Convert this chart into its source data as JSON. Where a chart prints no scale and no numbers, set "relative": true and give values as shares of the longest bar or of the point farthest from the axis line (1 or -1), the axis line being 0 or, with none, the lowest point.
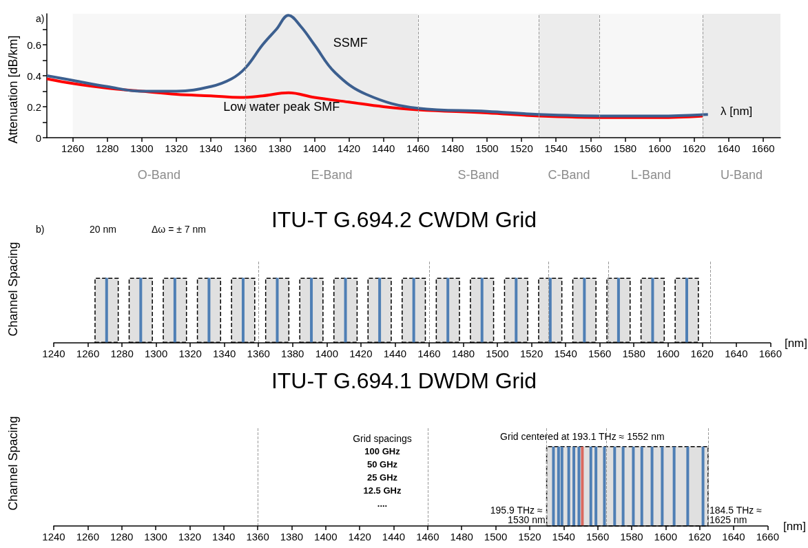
{
  "chart_data": [
    {
      "type": "line",
      "ylabel": "Attenuation [dB/km]",
      "xlabel": "λ [nm]",
      "annotations": [
        "a)"
      ],
      "marker": "none",
      "xlim": [
        1245,
        1670
      ],
      "xticks": [
        1260,
        1280,
        1300,
        1320,
        1340,
        1360,
        1380,
        1400,
        1420,
        1440,
        1460,
        1480,
        1500,
        1520,
        1540,
        1560,
        1580,
        1600,
        1620,
        1640,
        1660
      ],
      "ylim": [
        0,
        0.8
      ],
      "yticks": [
        0,
        {
          "value": 0.1,
          "label": null
        },
        0.2,
        {
          "value": 0.3,
          "label": null
        },
        0.4,
        {
          "value": 0.5,
          "label": null
        },
        0.6,
        {
          "value": 0.7,
          "label": null
        }
      ],
      "series": [
        {
          "name": "Low water peak SMF",
          "color": "#ff0000",
          "x": [
            1245,
            1260,
            1280,
            1300,
            1320,
            1340,
            1357,
            1370,
            1385,
            1400,
            1420,
            1440,
            1460,
            1500,
            1530,
            1570,
            1600,
            1625
          ],
          "values": [
            0.38,
            0.35,
            0.32,
            0.3,
            0.28,
            0.27,
            0.26,
            0.27,
            0.29,
            0.26,
            0.23,
            0.2,
            0.18,
            0.16,
            0.14,
            0.13,
            0.13,
            0.14
          ]
        },
        {
          "name": "SSMF",
          "color": "#3c5f8f",
          "x": [
            1245,
            1260,
            1280,
            1300,
            1320,
            1340,
            1352,
            1360,
            1370,
            1378,
            1385,
            1392,
            1400,
            1412,
            1430,
            1460,
            1500,
            1530,
            1570,
            1600,
            1628
          ],
          "values": [
            0.4,
            0.37,
            0.33,
            0.3,
            0.3,
            0.33,
            0.38,
            0.45,
            0.6,
            0.7,
            0.79,
            0.72,
            0.6,
            0.42,
            0.28,
            0.19,
            0.17,
            0.15,
            0.14,
            0.14,
            0.15
          ]
        }
      ],
      "ref_lines": [
        {
          "axis": "x",
          "value": 1360,
          "color": "#999999",
          "line_style": "dashed"
        },
        {
          "axis": "x",
          "value": 1460,
          "color": "#999999",
          "line_style": "dashed"
        },
        {
          "axis": "x",
          "value": 1530,
          "color": "#999999",
          "line_style": "dashed"
        },
        {
          "axis": "x",
          "value": 1565,
          "color": "#999999",
          "line_style": "dashed"
        },
        {
          "axis": "x",
          "value": 1625,
          "color": "#999999",
          "line_style": "dashed"
        }
      ],
      "bands": [
        {
          "axis": "x",
          "from": 1260,
          "to": 1360,
          "label": "O-Band",
          "color": "#f7f7f7"
        },
        {
          "axis": "x",
          "from": 1360,
          "to": 1460,
          "label": "E-Band",
          "color": "#ececec"
        },
        {
          "axis": "x",
          "from": 1460,
          "to": 1530,
          "label": "S-Band",
          "color": "#f7f7f7"
        },
        {
          "axis": "x",
          "from": 1530,
          "to": 1565,
          "label": "C-Band",
          "color": "#ececec"
        },
        {
          "axis": "x",
          "from": 1565,
          "to": 1625,
          "label": "L-Band",
          "color": "#f7f7f7"
        },
        {
          "axis": "x",
          "from": 1625,
          "to": 1670,
          "label": "U-Band",
          "color": "#ececec"
        }
      ]
    },
    {
      "type": "bar",
      "relative": true,
      "title": "ITU-T G.694.2 CWDM Grid",
      "ylabel": "Channel Spacing",
      "xlabel": "[nm]",
      "annotations": [
        "b)",
        "20 nm",
        "Δω = ± 7 nm"
      ],
      "xlim": [
        1240,
        1660
      ],
      "xticks": [
        1240,
        1260,
        1280,
        1300,
        1320,
        1340,
        1360,
        1380,
        1400,
        1420,
        1440,
        1460,
        1480,
        1500,
        1520,
        1540,
        1560,
        1580,
        1600,
        1620,
        1640,
        1660
      ],
      "x": [
        1271,
        1291,
        1311,
        1331,
        1351,
        1371,
        1391,
        1411,
        1431,
        1451,
        1471,
        1491,
        1511,
        1531,
        1551,
        1571,
        1591,
        1611
      ],
      "series": [
        {
          "color": "#e0e0e0",
          "values": [
            1,
            1,
            1,
            1,
            1,
            1,
            1,
            1,
            1,
            1,
            1,
            1,
            1,
            1,
            1,
            1,
            1,
            1
          ]
        },
        {
          "color": "#4f7fb5",
          "values": [
            1,
            1,
            1,
            1,
            1,
            1,
            1,
            1,
            1,
            1,
            1,
            1,
            1,
            1,
            1,
            1,
            1,
            1
          ]
        }
      ],
      "ref_lines": [
        {
          "axis": "x",
          "value": 1360,
          "color": "#999999",
          "line_style": "dashed"
        },
        {
          "axis": "x",
          "value": 1460,
          "color": "#999999",
          "line_style": "dashed"
        },
        {
          "axis": "x",
          "value": 1530,
          "color": "#999999",
          "line_style": "dashed"
        },
        {
          "axis": "x",
          "value": 1565,
          "color": "#999999",
          "line_style": "dashed"
        },
        {
          "axis": "x",
          "value": 1625,
          "color": "#999999",
          "line_style": "dashed"
        }
      ]
    },
    {
      "type": "bar",
      "relative": true,
      "title": "ITU-T G.694.1 DWDM Grid",
      "ylabel": "Channel Spacing",
      "xlabel": "[nm]",
      "annotations": [
        "Grid spacings",
        "100 GHz",
        "50 GHz",
        "25 GHz",
        "12.5 GHz",
        "....",
        {
          "text": "Grid centered at 193.1 THz ≈ 1552 nm",
          "x": 1551,
          "y": 1
        },
        {
          "text": "195.9 THz ≈ 1530 nm",
          "x": 1530,
          "y": 0
        },
        {
          "text": "184.5 THz ≈ 1625 nm",
          "x": 1625,
          "y": 0
        }
      ],
      "xlim": [
        1240,
        1660
      ],
      "xticks": [
        1240,
        1260,
        1280,
        1300,
        1320,
        1340,
        1360,
        1380,
        1400,
        1420,
        1440,
        1460,
        1480,
        1500,
        1520,
        1540,
        1560,
        1580,
        1600,
        1620,
        1640,
        1660
      ],
      "x": [
        1534,
        1537,
        1539,
        1543,
        1546,
        1549,
        1551,
        1556,
        1559,
        1564,
        1570,
        1575,
        1581,
        1586,
        1592,
        1598,
        1605,
        1613,
        1622
      ],
      "values": [
        1,
        1,
        1,
        1,
        1,
        1,
        1,
        1,
        1,
        1,
        1,
        1,
        1,
        1,
        1,
        1,
        1,
        1,
        1
      ],
      "colors": [
        "#4f7fb5",
        "#4f7fb5",
        "#4f7fb5",
        "#4f7fb5",
        "#4f7fb5",
        "#4f7fb5",
        "#d9695f",
        "#4f7fb5",
        "#4f7fb5",
        "#4f7fb5",
        "#4f7fb5",
        "#4f7fb5",
        "#4f7fb5",
        "#4f7fb5",
        "#4f7fb5",
        "#4f7fb5",
        "#4f7fb5",
        "#4f7fb5",
        "#4f7fb5"
      ],
      "bands": [
        {
          "axis": "x",
          "from": 1530,
          "to": 1625,
          "color": "#e0e0e0"
        }
      ],
      "ref_lines": [
        {
          "axis": "x",
          "value": 1360,
          "color": "#999999",
          "line_style": "dashed"
        },
        {
          "axis": "x",
          "value": 1460,
          "color": "#999999",
          "line_style": "dashed"
        },
        {
          "axis": "x",
          "value": 1530,
          "color": "#999999",
          "line_style": "dashed"
        },
        {
          "axis": "x",
          "value": 1565,
          "color": "#999999",
          "line_style": "dashed"
        },
        {
          "axis": "x",
          "value": 1625,
          "color": "#999999",
          "line_style": "dashed"
        }
      ]
    }
  ]
}
